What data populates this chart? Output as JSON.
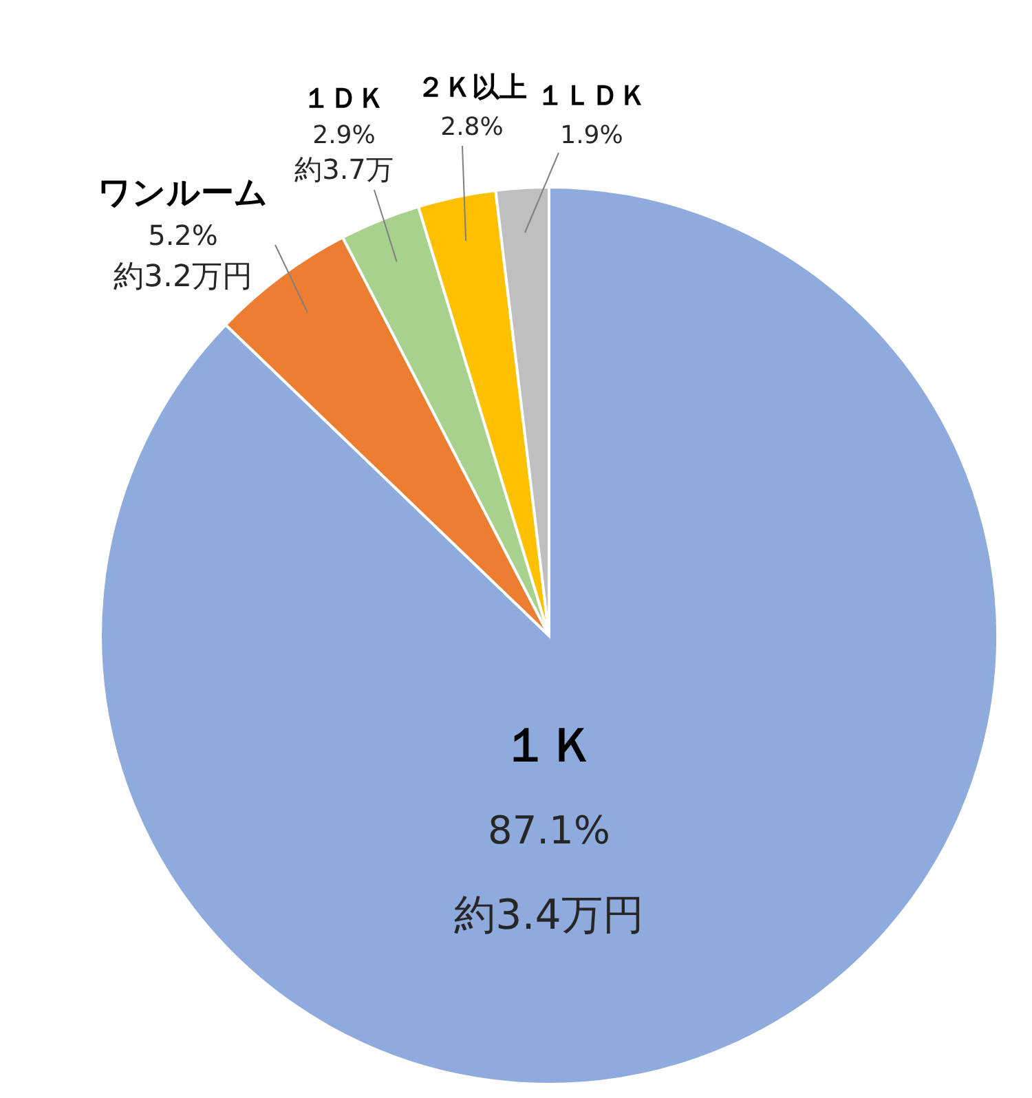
{
  "chart_data": {
    "type": "pie",
    "categories": [
      "１Ｋ",
      "ワンルーム",
      "１ＤＫ",
      "２Ｋ以上",
      "１ＬＤＫ"
    ],
    "values": [
      87.1,
      5.2,
      2.9,
      2.8,
      1.9
    ],
    "colors": [
      "#8faadc",
      "#ed7d31",
      "#a9d18e",
      "#ffc000",
      "#bfbfbf"
    ],
    "value_labels": [
      "87.1%",
      "5.2%",
      "2.9%",
      "2.8%",
      "1.9%"
    ],
    "annotations": [
      "約3.4万円",
      "約3.2万円",
      "約3.7万"
    ]
  }
}
